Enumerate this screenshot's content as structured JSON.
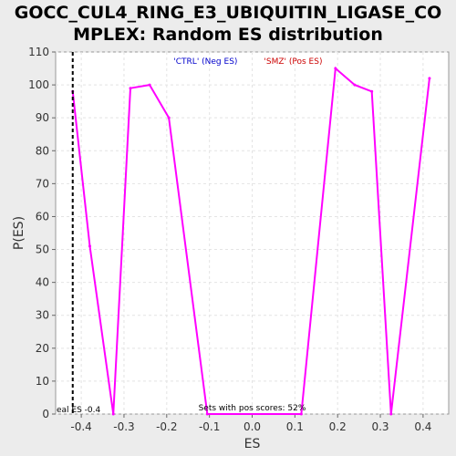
{
  "chart_data": {
    "type": "line",
    "title_line1": "GOCC_CUL4_RING_E3_UBIQUITIN_LIGASE_CO",
    "title_line2": "MPLEX: Random ES distribution",
    "xlabel": "ES",
    "ylabel": "P(ES)",
    "xlim": [
      -0.46,
      0.46
    ],
    "ylim": [
      0,
      110
    ],
    "x_ticks": [
      "-0.4",
      "-0.3",
      "-0.2",
      "-0.1",
      "0.0",
      "0.1",
      "0.2",
      "0.3",
      "0.4"
    ],
    "x_tick_values": [
      -0.4,
      -0.3,
      -0.2,
      -0.1,
      0.0,
      0.1,
      0.2,
      0.3,
      0.4
    ],
    "y_ticks": [
      "0",
      "10",
      "20",
      "30",
      "40",
      "50",
      "60",
      "70",
      "80",
      "90",
      "100",
      "110"
    ],
    "y_tick_values": [
      0,
      10,
      20,
      30,
      40,
      50,
      60,
      70,
      80,
      90,
      100,
      110
    ],
    "grid": true,
    "legend": [
      {
        "label": "'CTRL' (Neg ES)",
        "color": "#0000cc"
      },
      {
        "label": "'SMZ' (Pos ES)",
        "color": "#cc0000"
      }
    ],
    "series": [
      {
        "color": "#ff00ff",
        "x": [
          -0.42,
          -0.38,
          -0.325,
          -0.285,
          -0.24,
          -0.195,
          -0.105,
          0.115,
          0.195,
          0.24,
          0.28,
          0.325,
          0.415
        ],
        "y": [
          98,
          51,
          0,
          99,
          100,
          90,
          0,
          0,
          105,
          100,
          98,
          0,
          102
        ]
      }
    ],
    "vline": {
      "x": -0.42,
      "label": "eal ES -0.4"
    },
    "annotation": "Sets with pos scores: 52%"
  }
}
